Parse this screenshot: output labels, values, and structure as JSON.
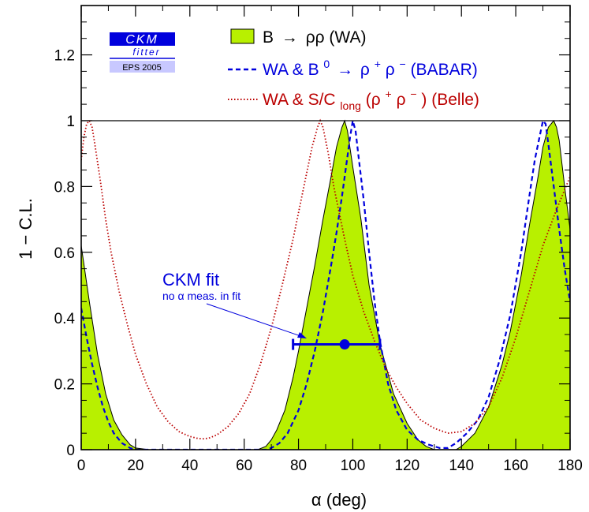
{
  "logo": {
    "line1": "CKM",
    "line2": "fitter",
    "line3": "EPS 2005"
  },
  "legend": {
    "wa": {
      "prefix": "B",
      "suffix": "ρρ (WA)",
      "color": "#b8f000"
    },
    "babar": {
      "text1": "WA & B",
      "sup0": "0",
      "text2": "ρ",
      "sup1": "+",
      "text3": "ρ",
      "sup2": "−",
      "text4": " (BABAR)",
      "color": "#0000dd"
    },
    "belle": {
      "text1": "WA & S/C",
      "sub": "long",
      "text2": "(ρ",
      "sup1": "+",
      "text3": "ρ",
      "sup2": "−",
      "text4": ") (Belle)",
      "color": "#bb0000"
    }
  },
  "annotation": {
    "title": "CKM fit",
    "subtitle": "no α meas. in fit"
  },
  "chart_data": {
    "type": "line",
    "xlabel": "α   (deg)",
    "ylabel": "1 − C.L.",
    "xlim": [
      0,
      180
    ],
    "ylim": [
      0,
      1.35
    ],
    "x_ticks": [
      0,
      20,
      40,
      60,
      80,
      100,
      120,
      140,
      160,
      180
    ],
    "y_ticks": [
      0,
      0.2,
      0.4,
      0.6,
      0.8,
      1,
      1.2
    ],
    "reference_line_y": 1,
    "series": [
      {
        "name": "B → ρρ (WA)",
        "style": "filled",
        "color": "#b8f000",
        "x": [
          0,
          3,
          6,
          9,
          12,
          15,
          18,
          20,
          25,
          30,
          40,
          50,
          60,
          65,
          68,
          70,
          72,
          75,
          78,
          80,
          83,
          86,
          89,
          92,
          94,
          96,
          97,
          98,
          100,
          103,
          106,
          110,
          115,
          120,
          124,
          127,
          130,
          133,
          135,
          138,
          140,
          145,
          150,
          155,
          158,
          162,
          165,
          168,
          170,
          172,
          174,
          175,
          176,
          178,
          180
        ],
        "y": [
          0.62,
          0.45,
          0.29,
          0.17,
          0.09,
          0.045,
          0.015,
          0.005,
          0,
          0,
          0,
          0,
          0,
          0,
          0.01,
          0.03,
          0.06,
          0.12,
          0.22,
          0.3,
          0.43,
          0.56,
          0.7,
          0.83,
          0.92,
          0.98,
          1.0,
          0.97,
          0.86,
          0.7,
          0.5,
          0.32,
          0.17,
          0.08,
          0.03,
          0.01,
          0,
          0,
          0,
          0,
          0.01,
          0.05,
          0.13,
          0.26,
          0.36,
          0.53,
          0.68,
          0.82,
          0.92,
          0.98,
          1.0,
          0.98,
          0.94,
          0.8,
          0.67
        ]
      },
      {
        "name": "WA & B0 → ρ+ρ− (BABAR)",
        "style": "dashed",
        "color": "#0000dd",
        "x": [
          0,
          2,
          4,
          6,
          8,
          10,
          12,
          15,
          18,
          20,
          25,
          30,
          40,
          50,
          60,
          65,
          68,
          70,
          73,
          76,
          80,
          83,
          86,
          89,
          92,
          94,
          96,
          98,
          99,
          100,
          101,
          102,
          104,
          106,
          108,
          110,
          113,
          116,
          120,
          124,
          128,
          132,
          135,
          138,
          142,
          146,
          150,
          154,
          158,
          162,
          165,
          167,
          169,
          170,
          171,
          172,
          174,
          176,
          178,
          180
        ],
        "y": [
          0.43,
          0.34,
          0.26,
          0.19,
          0.13,
          0.085,
          0.05,
          0.02,
          0.005,
          0,
          0,
          0,
          0,
          0,
          0,
          0,
          0,
          0.005,
          0.02,
          0.05,
          0.12,
          0.2,
          0.3,
          0.42,
          0.56,
          0.66,
          0.77,
          0.89,
          0.95,
          1.0,
          0.97,
          0.9,
          0.76,
          0.6,
          0.45,
          0.33,
          0.2,
          0.12,
          0.06,
          0.03,
          0.015,
          0.005,
          0.005,
          0.02,
          0.05,
          0.09,
          0.16,
          0.27,
          0.41,
          0.6,
          0.77,
          0.88,
          0.96,
          1.0,
          0.99,
          0.93,
          0.8,
          0.67,
          0.55,
          0.45
        ]
      },
      {
        "name": "WA & S/Clong(ρ+ρ−) (Belle)",
        "style": "dotted",
        "color": "#bb0000",
        "x": [
          0,
          1,
          2,
          3,
          4,
          5,
          7,
          9,
          11,
          14,
          17,
          20,
          24,
          28,
          32,
          36,
          40,
          43,
          45,
          47,
          50,
          54,
          58,
          62,
          66,
          70,
          74,
          78,
          82,
          85,
          87,
          88,
          89,
          91,
          93,
          95,
          97,
          100,
          104,
          108,
          112,
          116,
          120,
          125,
          130,
          135,
          140,
          145,
          150,
          155,
          160,
          165,
          170,
          175,
          180
        ],
        "y": [
          0.88,
          0.95,
          0.99,
          1.0,
          0.98,
          0.93,
          0.82,
          0.7,
          0.6,
          0.48,
          0.38,
          0.29,
          0.2,
          0.13,
          0.085,
          0.055,
          0.04,
          0.034,
          0.033,
          0.035,
          0.045,
          0.07,
          0.11,
          0.17,
          0.26,
          0.37,
          0.5,
          0.64,
          0.8,
          0.92,
          0.98,
          1.0,
          0.98,
          0.9,
          0.8,
          0.72,
          0.64,
          0.53,
          0.42,
          0.33,
          0.25,
          0.19,
          0.14,
          0.09,
          0.065,
          0.05,
          0.055,
          0.08,
          0.13,
          0.22,
          0.34,
          0.48,
          0.62,
          0.73,
          0.83
        ]
      }
    ],
    "fit_point": {
      "label": "CKM fit",
      "x": 97,
      "y": 0.32,
      "x_err": [
        78,
        110
      ],
      "color": "#0000dd"
    }
  }
}
